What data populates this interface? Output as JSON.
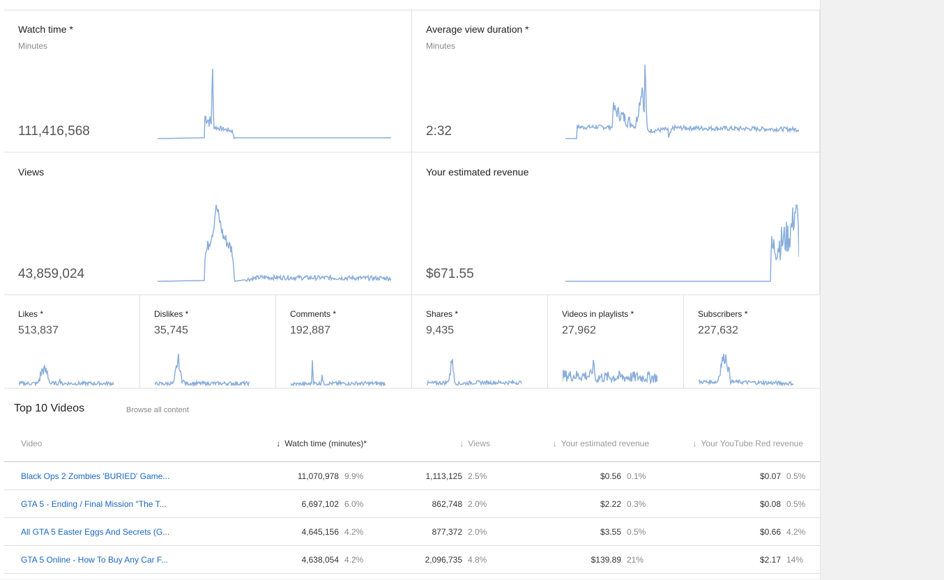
{
  "cards": [
    {
      "title": "Watch time *",
      "subtitle": "Minutes",
      "value": "111,416,568"
    },
    {
      "title": "Average view duration *",
      "subtitle": "Minutes",
      "value": "2:32"
    },
    {
      "title": "Views",
      "value": "43,859,024"
    },
    {
      "title": "Your estimated revenue",
      "value": "$671.55"
    }
  ],
  "small_cards": [
    {
      "title": "Likes *",
      "value": "513,837"
    },
    {
      "title": "Dislikes *",
      "value": "35,745"
    },
    {
      "title": "Comments *",
      "value": "192,887"
    },
    {
      "title": "Shares *",
      "value": "9,435"
    },
    {
      "title": "Videos in playlists *",
      "value": "27,962"
    },
    {
      "title": "Subscribers *",
      "value": "227,632"
    }
  ],
  "top_videos": {
    "title": "Top 10 Videos",
    "browse_link": "Browse all content",
    "columns": [
      "Video",
      "Watch time (minutes)*",
      "Views",
      "Your estimated revenue",
      "Your YouTube Red revenue"
    ],
    "sort_icon": "arrow-down",
    "rows": [
      {
        "video": "Black Ops 2 Zombies 'BURIED' Game...",
        "watch": "11,070,978",
        "watch_pct": "9.9%",
        "views": "1,113,125",
        "views_pct": "2.5%",
        "rev": "$0.56",
        "rev_pct": "0.1%",
        "red": "$0.07",
        "red_pct": "0.5%"
      },
      {
        "video": "GTA 5 - Ending / Final Mission \"The T...",
        "watch": "6,697,102",
        "watch_pct": "6.0%",
        "views": "862,748",
        "views_pct": "2.0%",
        "rev": "$2.22",
        "rev_pct": "0.3%",
        "red": "$0.08",
        "red_pct": "0.5%"
      },
      {
        "video": "All GTA 5 Easter Eggs And Secrets (G...",
        "watch": "4,645,156",
        "watch_pct": "4.2%",
        "views": "877,372",
        "views_pct": "2.0%",
        "rev": "$3.55",
        "rev_pct": "0.5%",
        "red": "$0.66",
        "red_pct": "4.2%"
      },
      {
        "video": "GTA 5 Online - How To Buy Any Car F...",
        "watch": "4,638,054",
        "watch_pct": "4.2%",
        "views": "2,096,735",
        "views_pct": "4.8%",
        "rev": "$139.89",
        "rev_pct": "21%",
        "red": "$2.17",
        "red_pct": "14%"
      }
    ]
  },
  "colors": {
    "sparkline": "#8aaedb",
    "link": "#1a67c2"
  }
}
